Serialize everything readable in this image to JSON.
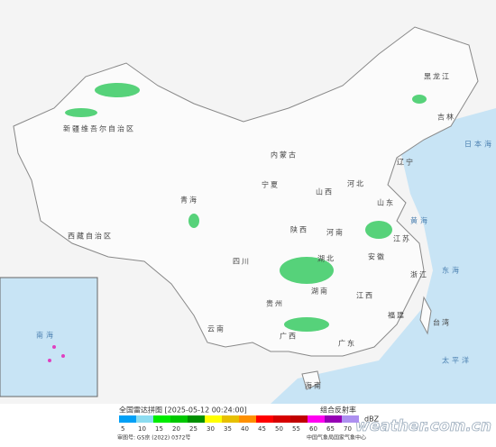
{
  "header": {
    "title": "全国雷达拼图 [2025-05-12 00:24:00]",
    "product": "组合反射率"
  },
  "legend": {
    "unit": "dBZ",
    "items": [
      {
        "value": 5,
        "color": "#01a0f6"
      },
      {
        "value": 10,
        "color": "#8cdcf0"
      },
      {
        "value": 15,
        "color": "#00ec00"
      },
      {
        "value": 20,
        "color": "#00c800"
      },
      {
        "value": 25,
        "color": "#009000"
      },
      {
        "value": 30,
        "color": "#ffff00"
      },
      {
        "value": 35,
        "color": "#e7c000"
      },
      {
        "value": 40,
        "color": "#ff9000"
      },
      {
        "value": 45,
        "color": "#ff0000"
      },
      {
        "value": 50,
        "color": "#d60000"
      },
      {
        "value": 55,
        "color": "#c00000"
      },
      {
        "value": 60,
        "color": "#ff00f0"
      },
      {
        "value": 65,
        "color": "#9600b4"
      },
      {
        "value": 70,
        "color": "#ad90f0"
      }
    ]
  },
  "footer": {
    "approval": "审图号: GS京 (2022) 0372号",
    "agency": "中国气象局国家气象中心",
    "watermark": "weather.com.cn"
  },
  "map": {
    "labels": [
      "新疆维吾尔自治区",
      "西藏自治区",
      "青海",
      "内蒙古",
      "四川",
      "云南",
      "贵州",
      "广西",
      "广东",
      "湖南",
      "湖北",
      "河南",
      "山东",
      "山西",
      "河北",
      "黑龙江",
      "吉林",
      "辽宁",
      "江西",
      "福建",
      "浙江",
      "江苏",
      "安徽",
      "陕西",
      "宁夏",
      "台湾",
      "海南",
      "黄海",
      "东海",
      "日本海",
      "太平洋",
      "南海"
    ]
  }
}
